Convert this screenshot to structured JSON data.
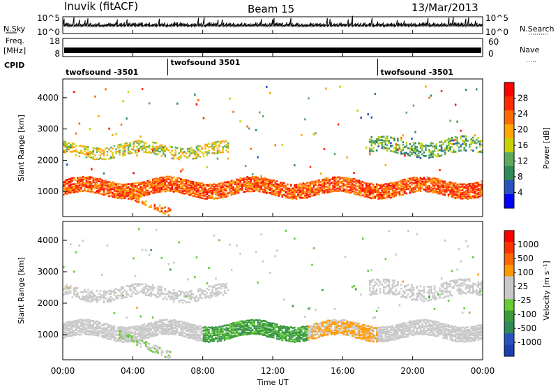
{
  "header": {
    "station": "Inuvik (fitACF)",
    "beam": "Beam 15",
    "date": "13/Mar/2013"
  },
  "nsky_panel": {
    "left_label": "N.Sky",
    "right_label": "N.Search",
    "left_ticks": [
      "10^5",
      "10^0"
    ],
    "right_ticks": [
      "10^5",
      "10^0"
    ]
  },
  "freq_panel": {
    "left_label_top": "Freq.",
    "left_label_unit": "[MHz]",
    "right_label": "Nave",
    "left_ticks": [
      "18",
      "8"
    ],
    "right_ticks": [
      "60",
      "0"
    ]
  },
  "cpid": {
    "label": "CPID",
    "segments": [
      {
        "label": "twofsound -3501",
        "start": 0,
        "end": 6
      },
      {
        "label": "twofsound 3501",
        "start": 6,
        "end": 18
      },
      {
        "label": "twofsound -3501",
        "start": 18,
        "end": 24
      }
    ]
  },
  "x_axis": {
    "label": "Time UT",
    "ticks": [
      "00:00",
      "04:00",
      "08:00",
      "12:00",
      "16:00",
      "20:00",
      "00:00"
    ]
  },
  "power_panel": {
    "ylabel": "Slant Range [km]",
    "yticks": [
      "4000",
      "3000",
      "2000",
      "1000"
    ],
    "colorbar_label": "Power [dB]",
    "colorbar_ticks": [
      "28",
      "24",
      "20",
      "16",
      "12",
      "8",
      "4"
    ],
    "colors": [
      "#0000ff",
      "#2a52be",
      "#2e8b57",
      "#5fa85f",
      "#c8d200",
      "#ffa500",
      "#ff6a00",
      "#ff2a00",
      "#ff0000"
    ]
  },
  "velocity_panel": {
    "ylabel": "Slant Range [km]",
    "yticks": [
      "4000",
      "3000",
      "2000",
      "1000"
    ],
    "colorbar_label": "Velocity [m s⁻¹]",
    "colorbar_ticks": [
      "1000",
      "500",
      "100",
      "25",
      "-25",
      "-100",
      "-500",
      "-1000"
    ],
    "colors": [
      "#1c3fb0",
      "#2a52be",
      "#2e8b57",
      "#3a9a3a",
      "#66cc33",
      "#c8c8c8",
      "#c8c8c8",
      "#ff9900",
      "#ff6600",
      "#ff3300",
      "#ff0000"
    ]
  },
  "chart_data": {
    "type": "heatmap",
    "title": "Inuvik (fitACF)   Beam 15   13/Mar/2013",
    "xlabel": "Time UT",
    "ylabel": "Slant Range [km]",
    "xlim": [
      0,
      24
    ],
    "ylim": [
      200,
      4600
    ],
    "x_ticks_hours": [
      0,
      4,
      8,
      12,
      16,
      20,
      24
    ],
    "y_ticks_km": [
      1000,
      2000,
      3000,
      4000
    ],
    "power_scale_db": [
      0,
      30
    ],
    "velocity_scale_ms": [
      -1000,
      1000
    ],
    "echo_bands": [
      {
        "name": "main band",
        "t_start": 0,
        "t_end": 24,
        "range_center_km": 1100,
        "range_width_km": 500,
        "power_db": 28,
        "velocity_ms": -300
      },
      {
        "name": "descending arc",
        "t_start": 3.2,
        "t_end": 6.2,
        "range_start_km": 1000,
        "range_end_km": 300,
        "power_db": 26,
        "velocity_ms": 0
      },
      {
        "name": "upper band",
        "t_start": 0,
        "t_end": 9.5,
        "range_center_km": 2300,
        "range_width_km": 400,
        "power_db": 20,
        "velocity_ms": 0
      },
      {
        "name": "upper band late",
        "t_start": 17.5,
        "t_end": 24,
        "range_center_km": 2400,
        "range_width_km": 500,
        "power_db": 16,
        "velocity_ms": 0
      }
    ],
    "nsky_range": [
      1,
      100000
    ],
    "freq_range_mhz": [
      8,
      18
    ],
    "freq_mean_mhz": 10.5,
    "nave_range": [
      0,
      60
    ]
  }
}
